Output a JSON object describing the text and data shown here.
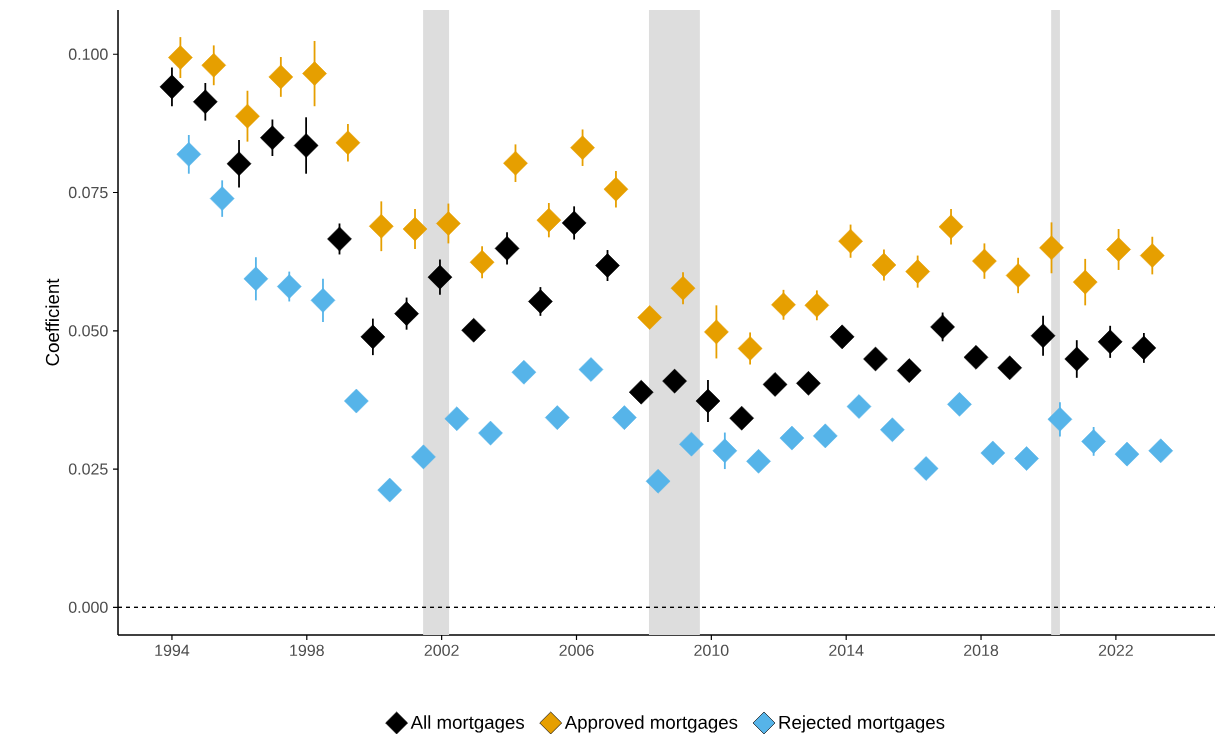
{
  "chart_data": {
    "type": "scatter",
    "ylabel": "Coefficient",
    "xlim": [
      1992.4,
      2024.94
    ],
    "ylim": [
      -0.005,
      0.108
    ],
    "xticks": [
      1994,
      1998,
      2002,
      2006,
      2010,
      2014,
      2018,
      2022
    ],
    "yticks": [
      {
        "value": 0,
        "label": "0.000"
      },
      {
        "value": 0.025,
        "label": "0.025"
      },
      {
        "value": 0.05,
        "label": "0.050"
      },
      {
        "value": 0.075,
        "label": "0.075"
      },
      {
        "value": 0.1,
        "label": "0.100"
      }
    ],
    "marker": "diamond",
    "legend": "bottom",
    "ref_lines": [
      {
        "axis": "y",
        "value": 0,
        "color": "#000000",
        "line_style": "dashed"
      }
    ],
    "bands": [
      {
        "axis": "x",
        "from": 2001.45,
        "to": 2002.22,
        "color": "#dddddd"
      },
      {
        "axis": "x",
        "from": 2008.15,
        "to": 2009.66,
        "color": "#dddddd"
      },
      {
        "axis": "x",
        "from": 2020.08,
        "to": 2020.34,
        "color": "#dddddd"
      }
    ],
    "series": [
      {
        "name": "All mortgages",
        "color": "#000000",
        "x": [
          1994.0,
          1994.99,
          1995.99,
          1996.98,
          1997.98,
          1998.97,
          1999.96,
          2000.96,
          2001.95,
          2002.95,
          2003.94,
          2004.93,
          2005.93,
          2006.92,
          2007.92,
          2008.91,
          2009.9,
          2010.9,
          2011.89,
          2012.88,
          2013.88,
          2014.87,
          2015.87,
          2016.86,
          2017.85,
          2018.85,
          2019.84,
          2020.84,
          2021.83,
          2022.83
        ],
        "values": [
          0.0941,
          0.0914,
          0.0802,
          0.0849,
          0.0835,
          0.0666,
          0.0489,
          0.0531,
          0.0597,
          0.0501,
          0.0649,
          0.0553,
          0.0695,
          0.0618,
          0.0389,
          0.0409,
          0.0373,
          0.0342,
          0.0403,
          0.0405,
          0.0489,
          0.0449,
          0.0428,
          0.0507,
          0.0452,
          0.0433,
          0.0491,
          0.0449,
          0.048,
          0.0469
        ],
        "errors": [
          0.0035,
          0.0034,
          0.0043,
          0.0033,
          0.0051,
          0.0028,
          0.0033,
          0.0029,
          0.0032,
          null,
          0.0029,
          0.0026,
          0.003,
          0.0028,
          null,
          null,
          0.0038,
          null,
          null,
          null,
          null,
          null,
          null,
          0.0026,
          null,
          null,
          0.0036,
          0.0034,
          0.0029,
          0.0027
        ]
      },
      {
        "name": "Approved mortgages",
        "color": "#e69f00",
        "x": [
          1994.25,
          1995.24,
          1996.24,
          1997.23,
          1998.23,
          1999.22,
          2000.21,
          2001.21,
          2002.2,
          2003.2,
          2004.19,
          2005.18,
          2006.18,
          2007.17,
          2008.17,
          2009.16,
          2010.15,
          2011.15,
          2012.14,
          2013.13,
          2014.13,
          2015.12,
          2016.12,
          2017.11,
          2018.1,
          2019.1,
          2020.09,
          2021.09,
          2022.08,
          2023.08
        ],
        "values": [
          0.0994,
          0.098,
          0.0888,
          0.0959,
          0.0965,
          0.084,
          0.0689,
          0.0684,
          0.0694,
          0.0624,
          0.0803,
          0.07,
          0.0831,
          0.0756,
          0.0524,
          0.0577,
          0.0498,
          0.0468,
          0.0547,
          0.0546,
          0.0662,
          0.0619,
          0.0607,
          0.0688,
          0.0626,
          0.06,
          0.065,
          0.0588,
          0.0647,
          0.0636
        ],
        "errors": [
          0.0037,
          0.0036,
          0.0046,
          0.0036,
          0.0059,
          0.0034,
          0.0045,
          0.0036,
          0.0036,
          0.0029,
          0.0034,
          0.0031,
          0.0033,
          0.0033,
          null,
          0.0029,
          0.0048,
          0.0029,
          0.0027,
          0.0027,
          0.003,
          0.0028,
          0.0029,
          0.0032,
          0.0032,
          0.0032,
          0.0046,
          0.0042,
          0.0037,
          0.0034
        ]
      },
      {
        "name": "Rejected mortgages",
        "color": "#56b4e9",
        "x": [
          1994.5,
          1995.49,
          1996.49,
          1997.48,
          1998.48,
          1999.47,
          2000.46,
          2001.46,
          2002.45,
          2003.45,
          2004.44,
          2005.43,
          2006.43,
          2007.42,
          2008.42,
          2009.41,
          2010.4,
          2011.4,
          2012.39,
          2013.38,
          2014.38,
          2015.37,
          2016.37,
          2017.36,
          2018.35,
          2019.35,
          2020.34,
          2021.34,
          2022.33,
          2023.33
        ],
        "values": [
          0.0819,
          0.0739,
          0.0594,
          0.058,
          0.0555,
          0.0373,
          0.0212,
          0.0272,
          0.0341,
          0.0315,
          0.0425,
          0.0343,
          0.043,
          0.0343,
          0.0228,
          0.0295,
          0.0283,
          0.0264,
          0.0306,
          0.031,
          0.0363,
          0.0321,
          0.0251,
          0.0367,
          0.0279,
          0.0269,
          0.034,
          0.03,
          0.0277,
          0.0283
        ],
        "errors": [
          0.0035,
          0.0033,
          0.0039,
          0.0027,
          0.0039,
          null,
          null,
          null,
          null,
          null,
          null,
          null,
          null,
          null,
          null,
          null,
          0.0033,
          null,
          null,
          null,
          null,
          null,
          null,
          null,
          null,
          null,
          0.0031,
          0.0026,
          null,
          null
        ]
      }
    ]
  }
}
